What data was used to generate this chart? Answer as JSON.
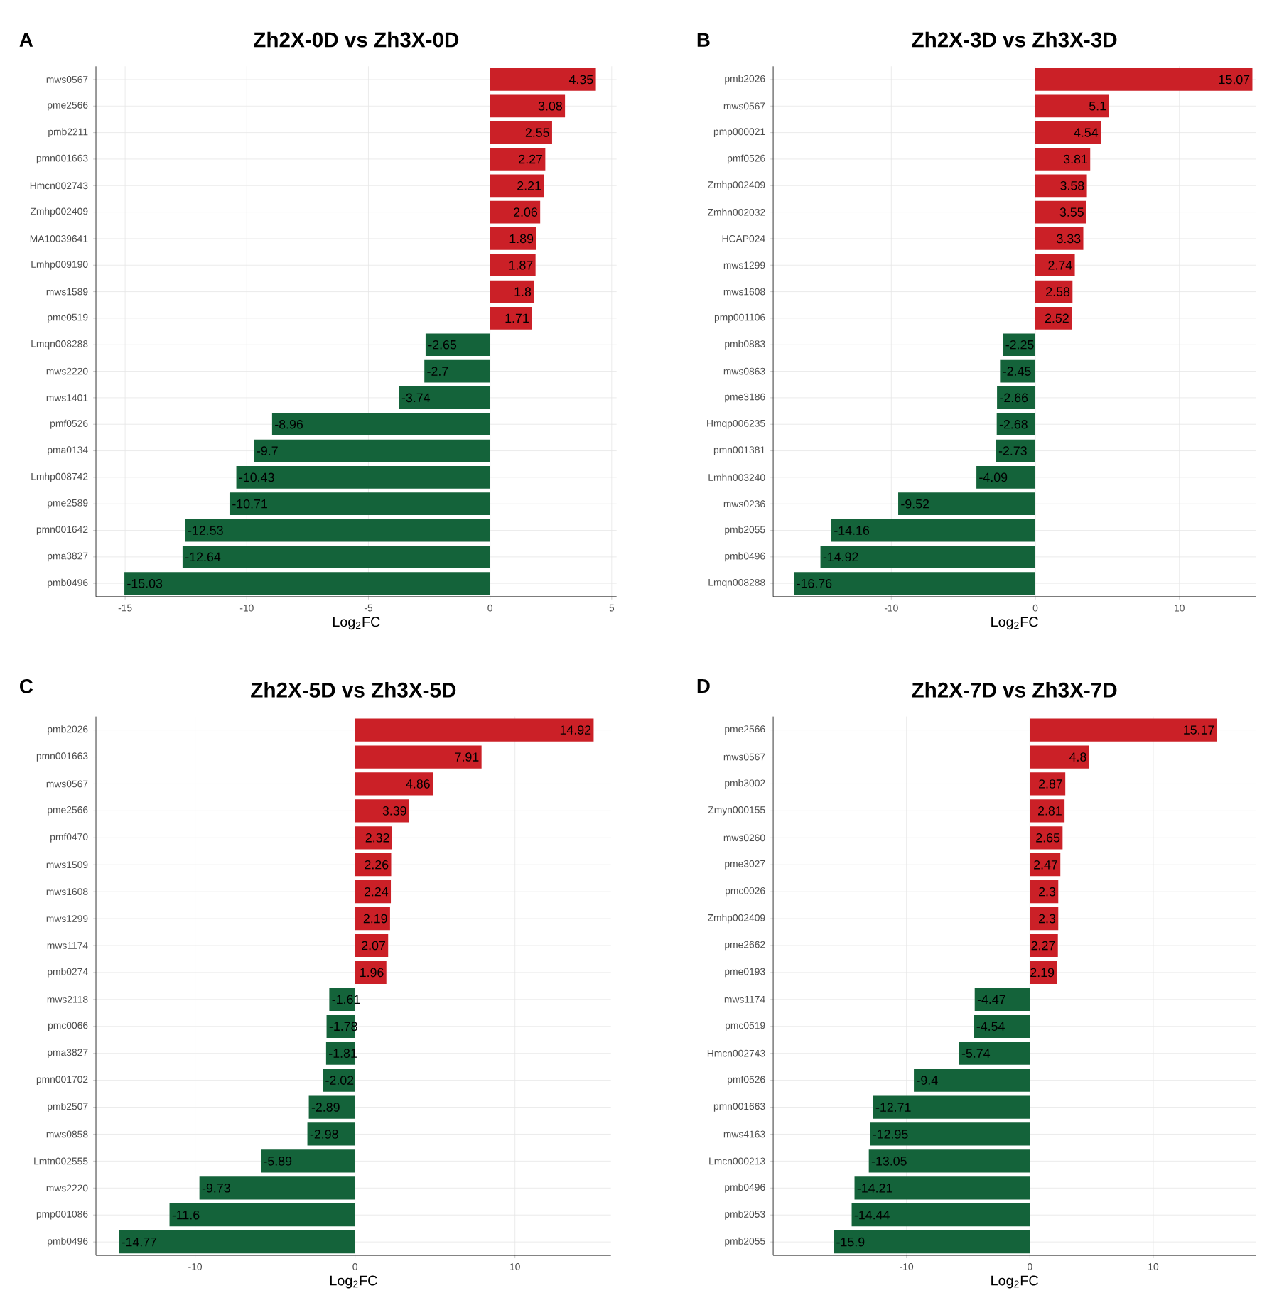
{
  "chart_data": [
    {
      "type": "bar",
      "orientation": "horizontal",
      "title": "Zh2X-0D vs Zh3X-0D",
      "xlabel": "Log$_{2}$FC",
      "annotations": [
        "A"
      ],
      "grid": true,
      "data_labels": true,
      "categories": [
        "mws0567",
        "pme2566",
        "pmb2211",
        "pmn001663",
        "Hmcn002743",
        "Zmhp002409",
        "MA10039641",
        "Lmhp009190",
        "mws1589",
        "pme0519",
        "Lmqn008288",
        "mws2220",
        "mws1401",
        "pmf0526",
        "pma0134",
        "Lmhp008742",
        "pme2589",
        "pmn001642",
        "pma3827",
        "pmb0496"
      ],
      "values": [
        4.35,
        3.08,
        2.55,
        2.27,
        2.21,
        2.06,
        1.89,
        1.87,
        1.8,
        1.71,
        -2.65,
        -2.7,
        -3.74,
        -8.96,
        -9.7,
        -10.43,
        -10.71,
        -12.53,
        -12.64,
        -15.03
      ],
      "colors": [
        "#cb2027",
        "#cb2027",
        "#cb2027",
        "#cb2027",
        "#cb2027",
        "#cb2027",
        "#cb2027",
        "#cb2027",
        "#cb2027",
        "#cb2027",
        "#14633a",
        "#14633a",
        "#14633a",
        "#14633a",
        "#14633a",
        "#14633a",
        "#14633a",
        "#14633a",
        "#14633a",
        "#14633a"
      ],
      "xlim": [
        -16.2,
        5.2
      ],
      "xticks": [
        -15,
        -10,
        -5,
        0,
        5
      ]
    },
    {
      "type": "bar",
      "orientation": "horizontal",
      "title": "Zh2X-3D vs Zh3X-3D",
      "xlabel": "Log$_{2}$FC",
      "annotations": [
        "B"
      ],
      "grid": true,
      "data_labels": true,
      "categories": [
        "pmb2026",
        "mws0567",
        "pmp000021",
        "pmf0526",
        "Zmhp002409",
        "Zmhn002032",
        "HCAP024",
        "mws1299",
        "mws1608",
        "pmp001106",
        "pmb0883",
        "mws0863",
        "pme3186",
        "Hmqp006235",
        "pmn001381",
        "Lmhn003240",
        "mws0236",
        "pmb2055",
        "pmb0496",
        "Lmqn008288"
      ],
      "values": [
        15.07,
        5.1,
        4.54,
        3.81,
        3.58,
        3.55,
        3.33,
        2.74,
        2.58,
        2.52,
        -2.25,
        -2.45,
        -2.66,
        -2.68,
        -2.73,
        -4.09,
        -9.52,
        -14.16,
        -14.92,
        -16.76
      ],
      "colors": [
        "#cb2027",
        "#cb2027",
        "#cb2027",
        "#cb2027",
        "#cb2027",
        "#cb2027",
        "#cb2027",
        "#cb2027",
        "#cb2027",
        "#cb2027",
        "#14633a",
        "#14633a",
        "#14633a",
        "#14633a",
        "#14633a",
        "#14633a",
        "#14633a",
        "#14633a",
        "#14633a",
        "#14633a"
      ],
      "xlim": [
        -18.2,
        15.3
      ],
      "xticks": [
        -10,
        0,
        10
      ]
    },
    {
      "type": "bar",
      "orientation": "horizontal",
      "title": "Zh2X-5D vs Zh3X-5D",
      "xlabel": "Log$_{2}$FC",
      "annotations": [
        "C"
      ],
      "grid": true,
      "data_labels": true,
      "categories": [
        "pmb2026",
        "pmn001663",
        "mws0567",
        "pme2566",
        "pmf0470",
        "mws1509",
        "mws1608",
        "mws1299",
        "mws1174",
        "pmb0274",
        "mws2118",
        "pmc0066",
        "pma3827",
        "pmn001702",
        "pmb2507",
        "mws0858",
        "Lmtn002555",
        "mws2220",
        "pmp001086",
        "pmb0496"
      ],
      "values": [
        14.92,
        7.91,
        4.86,
        3.39,
        2.32,
        2.26,
        2.24,
        2.19,
        2.07,
        1.96,
        -1.61,
        -1.78,
        -1.81,
        -2.02,
        -2.89,
        -2.98,
        -5.89,
        -9.73,
        -11.6,
        -14.77
      ],
      "colors": [
        "#cb2027",
        "#cb2027",
        "#cb2027",
        "#cb2027",
        "#cb2027",
        "#cb2027",
        "#cb2027",
        "#cb2027",
        "#cb2027",
        "#cb2027",
        "#14633a",
        "#14633a",
        "#14633a",
        "#14633a",
        "#14633a",
        "#14633a",
        "#14633a",
        "#14633a",
        "#14633a",
        "#14633a"
      ],
      "xlim": [
        -16.2,
        16.0
      ],
      "xticks": [
        -10,
        0,
        10
      ]
    },
    {
      "type": "bar",
      "orientation": "horizontal",
      "title": "Zh2X-7D vs Zh3X-7D",
      "xlabel": "Log$_{2}$FC",
      "annotations": [
        "D"
      ],
      "grid": true,
      "data_labels": true,
      "categories": [
        "pme2566",
        "mws0567",
        "pmb3002",
        "Zmyn000155",
        "mws0260",
        "pme3027",
        "pmc0026",
        "Zmhp002409",
        "pme2662",
        "pme0193",
        "mws1174",
        "pmc0519",
        "Hmcn002743",
        "pmf0526",
        "pmn001663",
        "mws4163",
        "Lmcn000213",
        "pmb0496",
        "pmb2053",
        "pmb2055"
      ],
      "values": [
        15.17,
        4.8,
        2.87,
        2.81,
        2.65,
        2.47,
        2.3,
        2.3,
        2.27,
        2.19,
        -4.47,
        -4.54,
        -5.74,
        -9.4,
        -12.71,
        -12.95,
        -13.05,
        -14.21,
        -14.44,
        -15.9
      ],
      "colors": [
        "#cb2027",
        "#cb2027",
        "#cb2027",
        "#cb2027",
        "#cb2027",
        "#cb2027",
        "#cb2027",
        "#cb2027",
        "#cb2027",
        "#cb2027",
        "#14633a",
        "#14633a",
        "#14633a",
        "#14633a",
        "#14633a",
        "#14633a",
        "#14633a",
        "#14633a",
        "#14633a",
        "#14633a"
      ],
      "xlim": [
        -20.8,
        18.3
      ],
      "xticks": [
        -10,
        0,
        10
      ]
    }
  ]
}
